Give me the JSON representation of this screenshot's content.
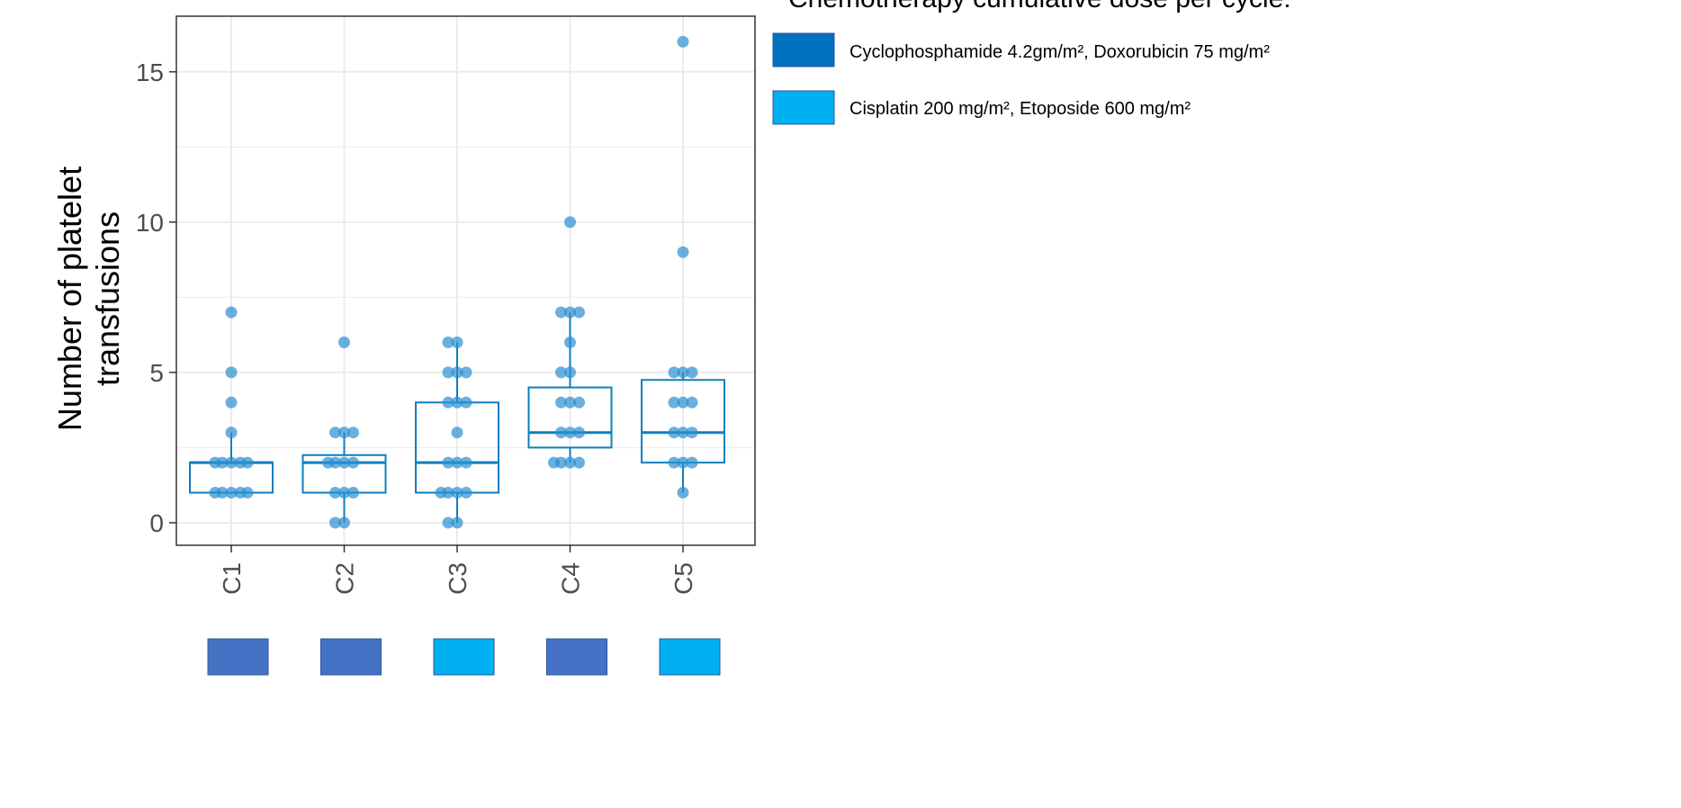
{
  "chart_data": {
    "type": "box",
    "ylabel_lines": [
      "Number of platelet",
      "transfusions"
    ],
    "xlabel": "",
    "ylim": [
      -0.75,
      16.85
    ],
    "yticks": [
      0,
      5,
      10,
      15
    ],
    "grid": true,
    "categories": [
      "C1",
      "C2",
      "C3",
      "C4",
      "C5"
    ],
    "boxes": [
      {
        "category": "C1",
        "q1": 1,
        "median": 2,
        "q3": 2,
        "whisker_low": 1,
        "whisker_high": 3
      },
      {
        "category": "C2",
        "q1": 1,
        "median": 2,
        "q3": 2.25,
        "whisker_low": 0,
        "whisker_high": 3
      },
      {
        "category": "C3",
        "q1": 1,
        "median": 2,
        "q3": 4,
        "whisker_low": 0,
        "whisker_high": 6
      },
      {
        "category": "C4",
        "q1": 2.5,
        "median": 3,
        "q3": 4.5,
        "whisker_low": 2,
        "whisker_high": 7
      },
      {
        "category": "C5",
        "q1": 2,
        "median": 3,
        "q3": 4.75,
        "whisker_low": 1,
        "whisker_high": 5
      }
    ],
    "points": [
      {
        "category": "C1",
        "values": [
          7,
          5,
          4,
          3,
          2,
          2,
          2,
          2,
          2,
          1,
          1,
          1,
          1,
          1
        ]
      },
      {
        "category": "C2",
        "values": [
          6,
          3,
          3,
          3,
          2,
          2,
          2,
          2,
          1,
          1,
          1,
          0,
          0
        ]
      },
      {
        "category": "C3",
        "values": [
          6,
          6,
          5,
          5,
          5,
          4,
          4,
          4,
          3,
          2,
          2,
          2,
          1,
          1,
          1,
          1,
          0,
          0
        ]
      },
      {
        "category": "C4",
        "values": [
          10,
          7,
          7,
          7,
          6,
          5,
          5,
          4,
          4,
          4,
          3,
          3,
          3,
          2,
          2,
          2,
          2
        ]
      },
      {
        "category": "C5",
        "values": [
          16,
          9,
          5,
          5,
          5,
          4,
          4,
          4,
          3,
          3,
          3,
          2,
          2,
          2,
          1
        ]
      }
    ],
    "cycle_regimen": [
      "Cyclophosphamide 4.2gm/m², Doxorubicin 75 mg/m²",
      "Cyclophosphamide 4.2gm/m², Doxorubicin 75 mg/m²",
      "Cisplatin 200 mg/m², Etoposide 600 mg/m²",
      "Cyclophosphamide 4.2gm/m², Doxorubicin 75 mg/m²",
      "Cisplatin 200 mg/m², Etoposide 600 mg/m²"
    ],
    "legend": {
      "title": "Chemotherapy cumulative dose per cycle:",
      "items": [
        {
          "label": "Cyclophosphamide 4.2gm/m², Doxorubicin 75 mg/m²",
          "color": "#0070c0"
        },
        {
          "label": "Cisplatin 200 mg/m², Etoposide 600 mg/m²",
          "color": "#00b0f0"
        }
      ],
      "position": "top-right"
    },
    "colors": {
      "box": "#0b7fc1",
      "point": "#2b8fd0",
      "grid": "#ebebeb",
      "cyclophosphamide_square": "#4472c4",
      "cisplatin_square": "#00b0f0"
    }
  }
}
